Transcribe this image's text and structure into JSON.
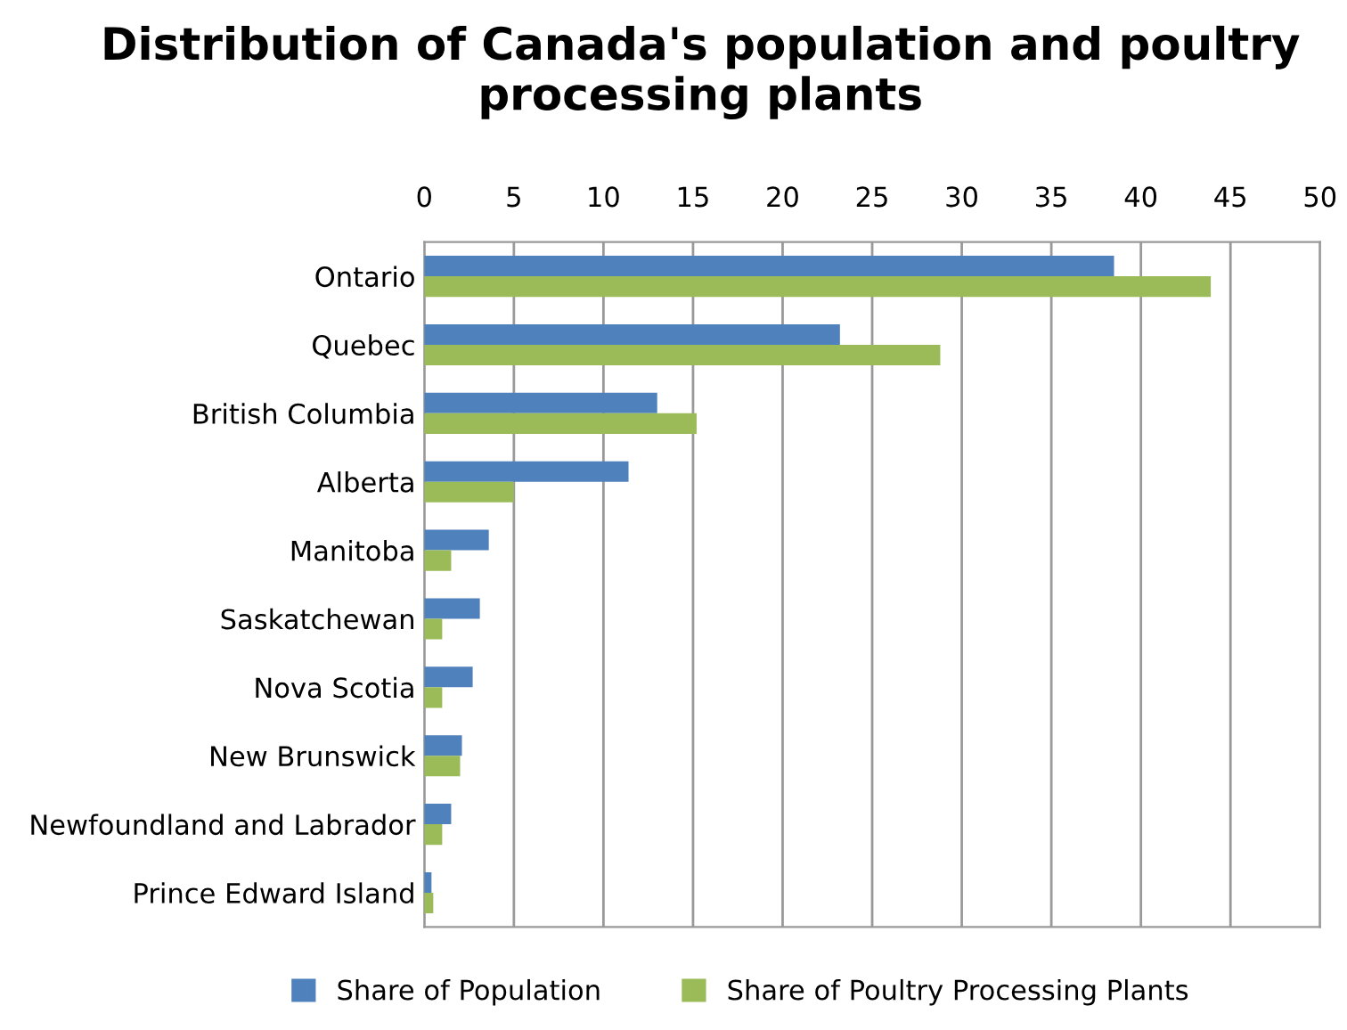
{
  "chart_data": {
    "type": "bar",
    "orientation": "horizontal",
    "title": "Distribution of Canada's population and poultry processing plants",
    "categories": [
      "Ontario",
      "Quebec",
      "British Columbia",
      "Alberta",
      "Manitoba",
      "Saskatchewan",
      "Nova Scotia",
      "New Brunswick",
      "Newfoundland and Labrador",
      "Prince Edward Island"
    ],
    "series": [
      {
        "name": "Share of Population",
        "color": "#4f81bd",
        "values": [
          38.5,
          23.2,
          13.0,
          11.4,
          3.6,
          3.1,
          2.7,
          2.1,
          1.5,
          0.4
        ]
      },
      {
        "name": "Share of Poultry Processing Plants",
        "color": "#9bbb59",
        "values": [
          43.9,
          28.8,
          15.2,
          5.0,
          1.5,
          1.0,
          1.0,
          2.0,
          1.0,
          0.5
        ]
      }
    ],
    "xlim": [
      0,
      50
    ],
    "xticks": [
      0,
      5,
      10,
      15,
      20,
      25,
      30,
      35,
      40,
      45,
      50
    ],
    "grid": "x",
    "legend": "bottom"
  }
}
